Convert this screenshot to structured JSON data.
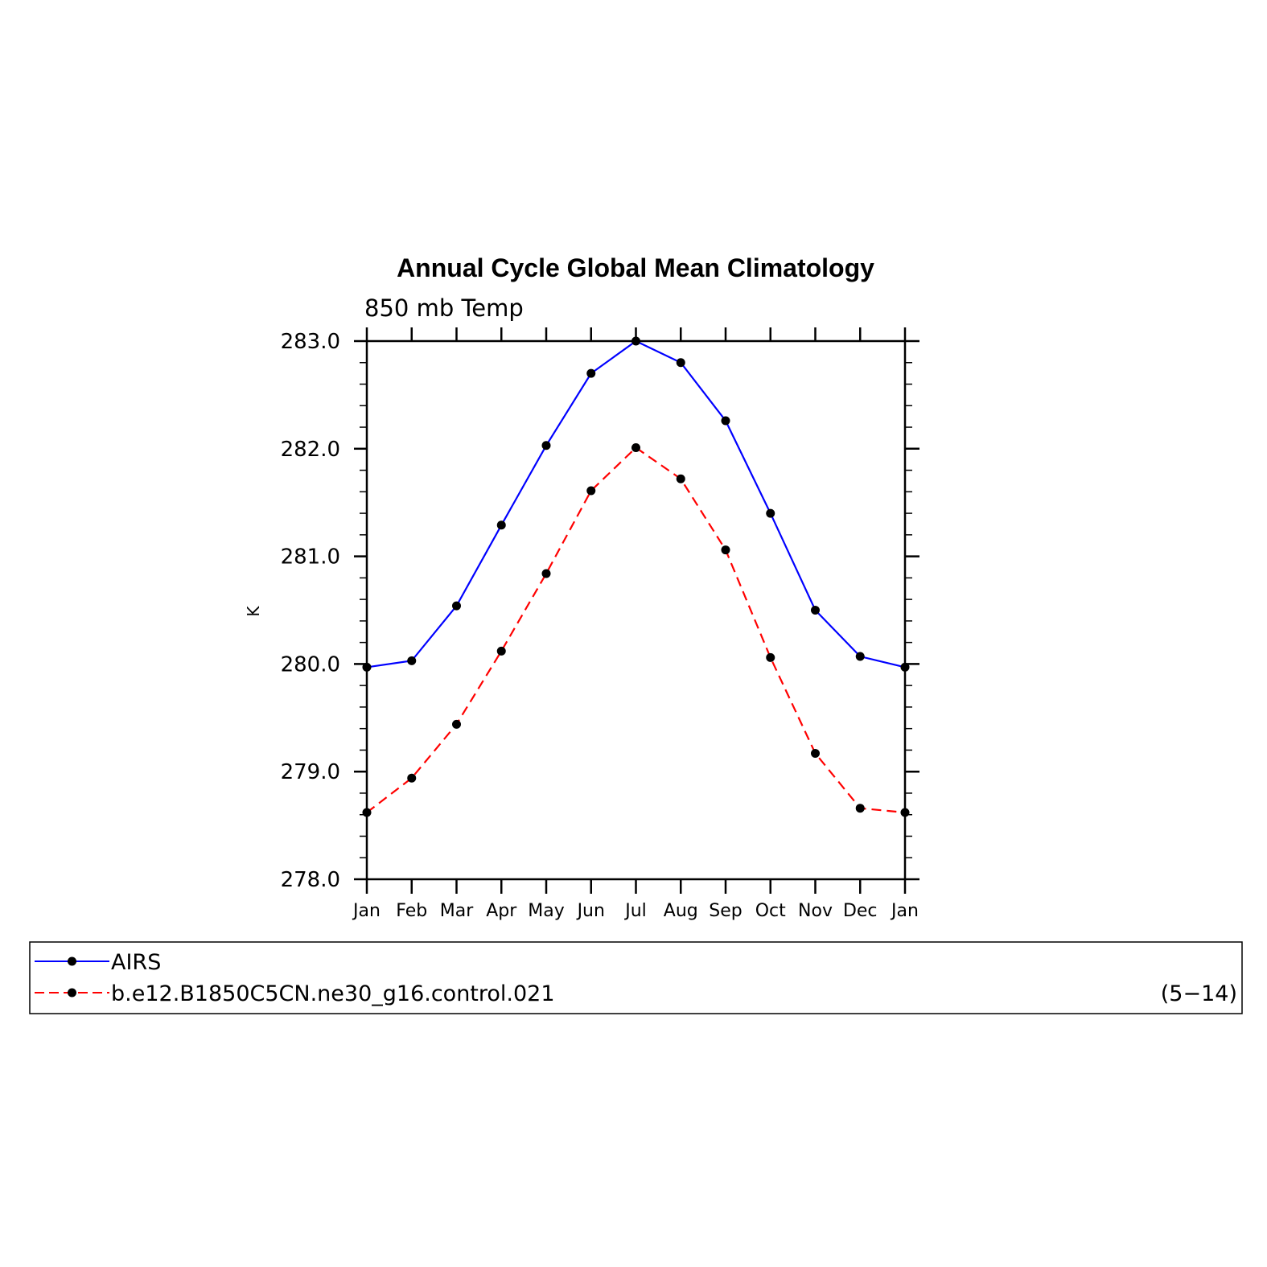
{
  "chart_data": {
    "type": "line",
    "title": "Annual Cycle Global Mean Climatology",
    "subtitle": "850 mb Temp",
    "xlabel": "",
    "ylabel": "K",
    "categories": [
      "Jan",
      "Feb",
      "Mar",
      "Apr",
      "May",
      "Jun",
      "Jul",
      "Aug",
      "Sep",
      "Oct",
      "Nov",
      "Dec",
      "Jan"
    ],
    "ylim": [
      278.0,
      283.0
    ],
    "yticks": [
      "278.0",
      "279.0",
      "280.0",
      "281.0",
      "282.0",
      "283.0"
    ],
    "grid": false,
    "legend_placement": "bottom",
    "series": [
      {
        "name": "AIRS",
        "color": "#0000ff",
        "dashed": false,
        "values": [
          279.97,
          280.03,
          280.54,
          281.29,
          282.03,
          282.7,
          283.0,
          282.8,
          282.26,
          281.4,
          280.5,
          280.07,
          279.97
        ]
      },
      {
        "name": "b.e12.B1850C5CN.ne30_g16.control.021",
        "color": "#ff0000",
        "dashed": true,
        "values": [
          278.62,
          278.94,
          279.44,
          280.12,
          280.84,
          281.61,
          282.01,
          281.72,
          281.06,
          280.06,
          279.17,
          278.66,
          278.62
        ]
      }
    ],
    "legend_note": "(5−14)"
  }
}
